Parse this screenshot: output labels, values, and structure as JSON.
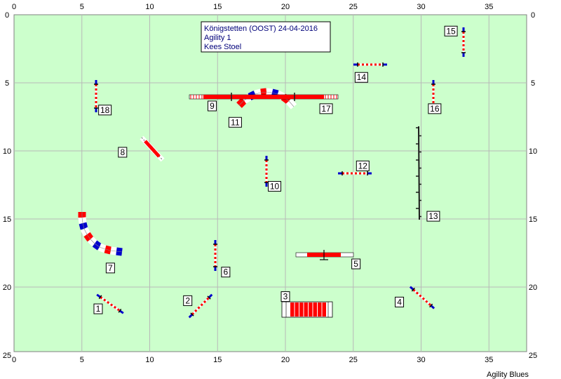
{
  "info": {
    "line1": "Königstetten (OOST) 24-04-2016",
    "line2": "Agility 1",
    "line3": "Kees Stoel"
  },
  "footer": "Agility Blues",
  "colors": {
    "field": "#ccffcc",
    "grid": "#b8b8b8",
    "border": "#808080",
    "red": "#ff0000",
    "blue": "#0000cc",
    "dark": "#1a1a1a"
  },
  "axes": {
    "x_ticks": [
      "0",
      "5",
      "10",
      "15",
      "20",
      "25",
      "30",
      "35"
    ],
    "y_ticks": [
      "0",
      "5",
      "10",
      "15",
      "20",
      "25"
    ]
  },
  "labels": [
    {
      "n": "1",
      "x": 6.2,
      "y": 21.6
    },
    {
      "n": "2",
      "x": 12.8,
      "y": 21.0
    },
    {
      "n": "3",
      "x": 20.0,
      "y": 20.7
    },
    {
      "n": "4",
      "x": 28.4,
      "y": 21.1
    },
    {
      "n": "5",
      "x": 25.2,
      "y": 18.3
    },
    {
      "n": "6",
      "x": 15.6,
      "y": 18.9
    },
    {
      "n": "7",
      "x": 7.1,
      "y": 18.6
    },
    {
      "n": "8",
      "x": 8.0,
      "y": 10.1
    },
    {
      "n": "9",
      "x": 14.6,
      "y": 6.7
    },
    {
      "n": "10",
      "x": 19.2,
      "y": 12.6
    },
    {
      "n": "11",
      "x": 16.3,
      "y": 7.9
    },
    {
      "n": "12",
      "x": 25.7,
      "y": 11.1
    },
    {
      "n": "13",
      "x": 30.9,
      "y": 14.8
    },
    {
      "n": "14",
      "x": 25.6,
      "y": 4.6
    },
    {
      "n": "15",
      "x": 32.2,
      "y": 1.2
    },
    {
      "n": "16",
      "x": 31.0,
      "y": 6.9
    },
    {
      "n": "17",
      "x": 23.0,
      "y": 6.9
    },
    {
      "n": "18",
      "x": 6.7,
      "y": 7.0
    }
  ]
}
